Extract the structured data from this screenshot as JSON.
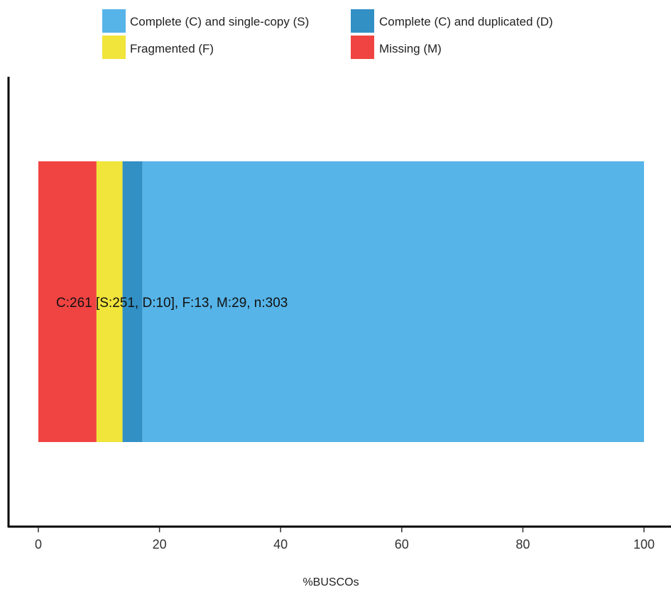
{
  "chart_data": {
    "type": "bar",
    "orientation": "horizontal",
    "stacked": true,
    "xlabel": "%BUSCOs",
    "xlim": [
      0,
      100
    ],
    "xticks": [
      "0",
      "20",
      "40",
      "60",
      "80",
      "100"
    ],
    "xtick_values": [
      0,
      20,
      40,
      60,
      80,
      100
    ],
    "grid": false,
    "legend_position": "top",
    "annotation": "C:261 [S:251, D:10], F:13, M:29, n:303",
    "segments": [
      {
        "key": "M",
        "name": "Missing (M)",
        "value": 9.6,
        "color": "#F04442"
      },
      {
        "key": "F",
        "name": "Fragmented (F)",
        "value": 4.3,
        "color": "#F1E43B"
      },
      {
        "key": "D",
        "name": "Complete (C) and duplicated (D)",
        "value": 3.3,
        "color": "#3290C5"
      },
      {
        "key": "S",
        "name": "Complete (C) and single-copy (S)",
        "value": 82.8,
        "color": "#56B4E8"
      }
    ],
    "legend": [
      {
        "name": "Complete (C) and single-copy (S)",
        "color": "#56B4E8"
      },
      {
        "name": "Complete (C) and duplicated (D)",
        "color": "#3290C5"
      },
      {
        "name": "Fragmented (F)",
        "color": "#F1E43B"
      },
      {
        "name": "Missing (M)",
        "color": "#F04442"
      }
    ]
  }
}
